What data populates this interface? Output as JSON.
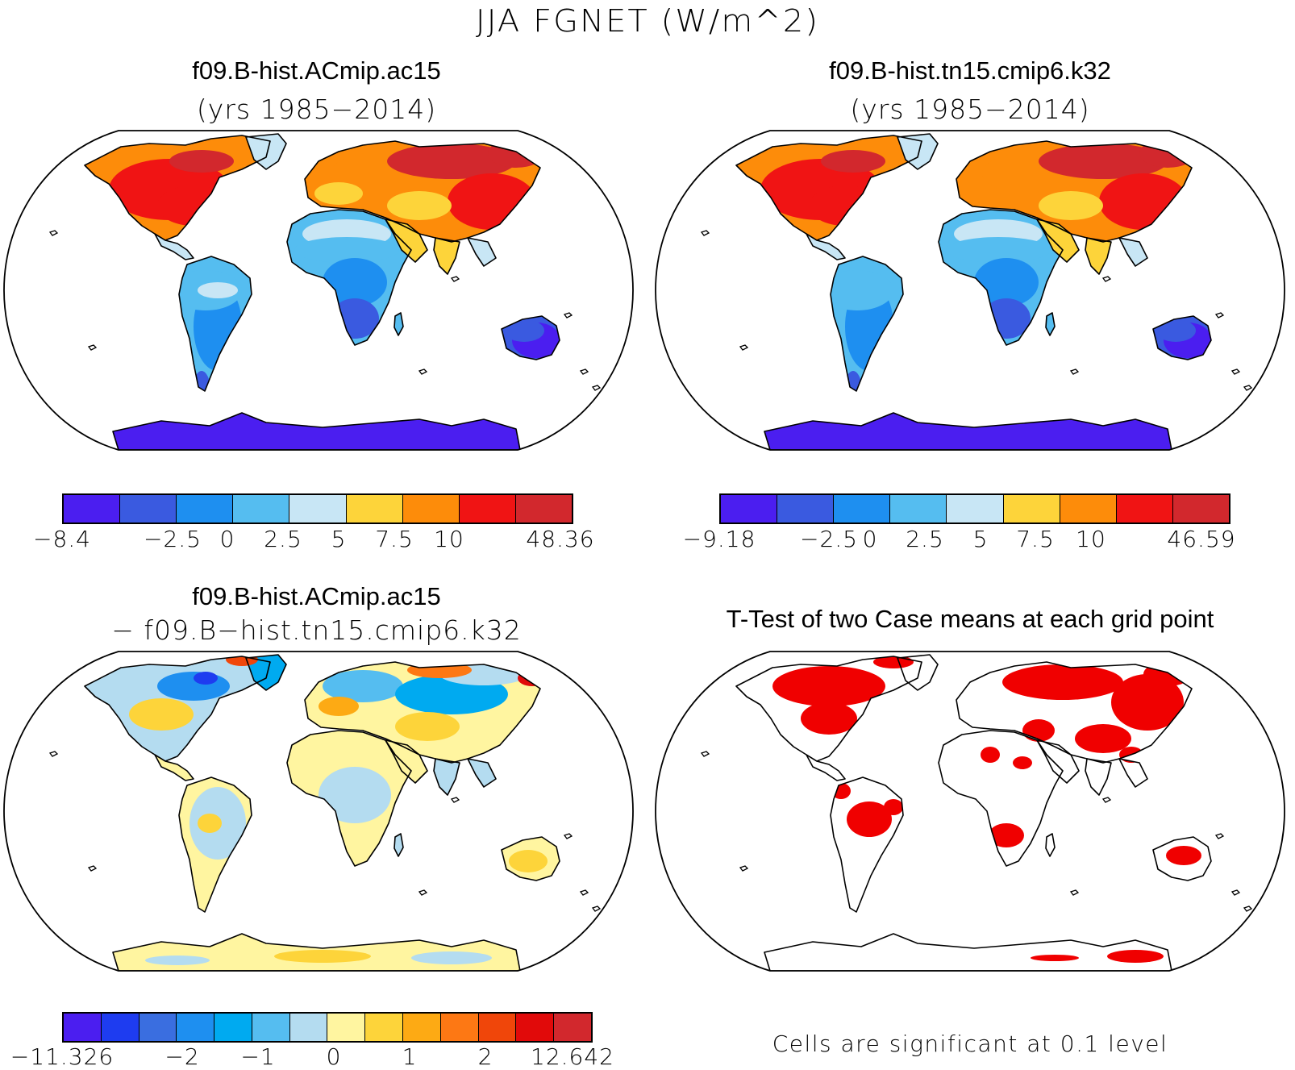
{
  "figure": {
    "title": "JJA FGNET (W/m^2)"
  },
  "panels": [
    {
      "id": "case1",
      "title": "f09.B-hist.ACmip.ac15",
      "subtitle": "(yrs 1985−2014)",
      "colorbar": {
        "colors": [
          "#4b1ef0",
          "#3a5ae0",
          "#1e8ff0",
          "#55bdf0",
          "#c8e6f5",
          "#fdd43a",
          "#fd8c0a",
          "#f01414",
          "#d2282d"
        ],
        "tick_labels": [
          "−8.4",
          "−2.5",
          "0",
          "2.5",
          "5",
          "7.5",
          "10",
          "48.36"
        ]
      }
    },
    {
      "id": "case2",
      "title": "f09.B-hist.tn15.cmip6.k32",
      "subtitle": "(yrs 1985−2014)",
      "colorbar": {
        "colors": [
          "#4b1ef0",
          "#3a5ae0",
          "#1e8ff0",
          "#55bdf0",
          "#c8e6f5",
          "#fdd43a",
          "#fd8c0a",
          "#f01414",
          "#d2282d"
        ],
        "tick_labels": [
          "−9.18",
          "−2.5",
          "0",
          "2.5",
          "5",
          "7.5",
          "10",
          "46.59"
        ]
      }
    },
    {
      "id": "difference",
      "title": "f09.B-hist.ACmip.ac15",
      "subtitle": "− f09.B−hist.tn15.cmip6.k32",
      "colorbar": {
        "colors": [
          "#4b1ef0",
          "#1e3cf0",
          "#3a6ee0",
          "#1e8ff0",
          "#00aaf0",
          "#55bdf0",
          "#b4dcf0",
          "#fff5a0",
          "#fdd43a",
          "#fdaa14",
          "#fd7814",
          "#f0460a",
          "#e10a0a",
          "#d2282d"
        ],
        "tick_labels": [
          "−11.326",
          "−2",
          "−1",
          "0",
          "1",
          "2",
          "12.642"
        ]
      }
    },
    {
      "id": "ttest",
      "title": "T-Test of two Case means at each grid point",
      "note": "Cells are significant at 0.1 level",
      "significant_color": "#f00000"
    }
  ]
}
